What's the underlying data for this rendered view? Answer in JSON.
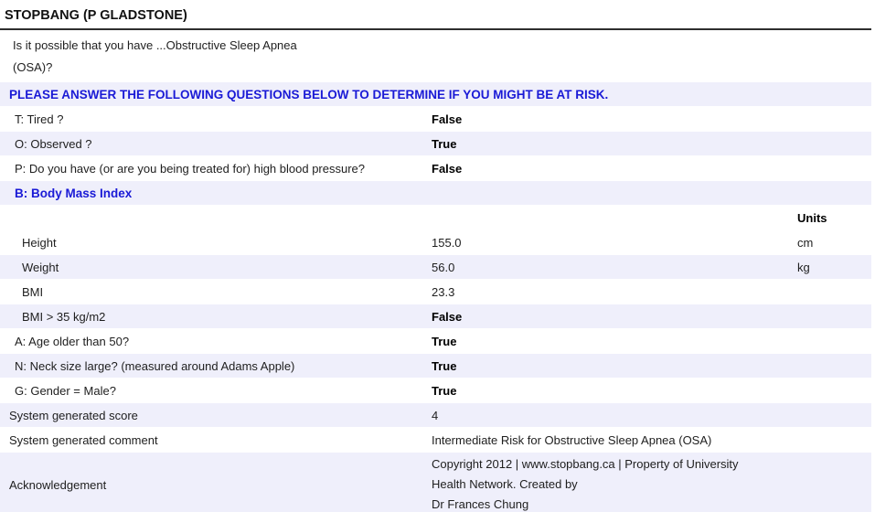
{
  "title": "STOPBANG (P GLADSTONE)",
  "units_column_header": "Units",
  "colors": {
    "shaded_row": "#EFEFFB",
    "accent_blue": "#1A1AD6",
    "header_rule": "#2E2E2E",
    "bold_value": "#000000",
    "body_text": "#1E1E1E"
  },
  "rows": [
    {
      "type": "intro",
      "shaded": false,
      "label": "Is it possible that you have ...Obstructive Sleep Apnea\n(OSA)?"
    },
    {
      "type": "banner",
      "shaded": true,
      "label": "PLEASE ANSWER THE FOLLOWING QUESTIONS BELOW TO DETERMINE IF YOU MIGHT BE AT RISK."
    },
    {
      "type": "question",
      "shaded": false,
      "label": "T: Tired ?",
      "value": "False"
    },
    {
      "type": "question",
      "shaded": true,
      "label": "O: Observed ?",
      "value": "True"
    },
    {
      "type": "question",
      "shaded": false,
      "label": "P: Do you have (or are you being treated for) high blood pressure?",
      "value": "False"
    },
    {
      "type": "section",
      "shaded": true,
      "label": "B: Body Mass Index"
    },
    {
      "type": "units-header",
      "shaded": false,
      "unit": "Units"
    },
    {
      "type": "measure",
      "shaded": false,
      "label": "Height",
      "value": "155.0",
      "unit": "cm"
    },
    {
      "type": "measure",
      "shaded": true,
      "label": "Weight",
      "value": "56.0",
      "unit": "kg"
    },
    {
      "type": "measure",
      "shaded": false,
      "label": "BMI",
      "value": "23.3"
    },
    {
      "type": "question-sub",
      "shaded": true,
      "label": "BMI > 35 kg/m2",
      "value": "False"
    },
    {
      "type": "question",
      "shaded": false,
      "label": "A: Age older than 50?",
      "value": "True"
    },
    {
      "type": "question",
      "shaded": true,
      "label": "N: Neck size large? (measured around Adams Apple)",
      "value": "True"
    },
    {
      "type": "question",
      "shaded": false,
      "label": "G: Gender = Male?",
      "value": "True"
    },
    {
      "type": "system",
      "shaded": true,
      "label": "System generated score",
      "value": "4"
    },
    {
      "type": "system",
      "shaded": false,
      "label": "System generated comment",
      "value": "Intermediate Risk for Obstructive Sleep Apnea (OSA)"
    },
    {
      "type": "ack",
      "shaded": true,
      "label": "Acknowledgement",
      "value": "Copyright 2012 | www.stopbang.ca | Property of University\nHealth Network. Created by\nDr Frances Chung"
    }
  ]
}
